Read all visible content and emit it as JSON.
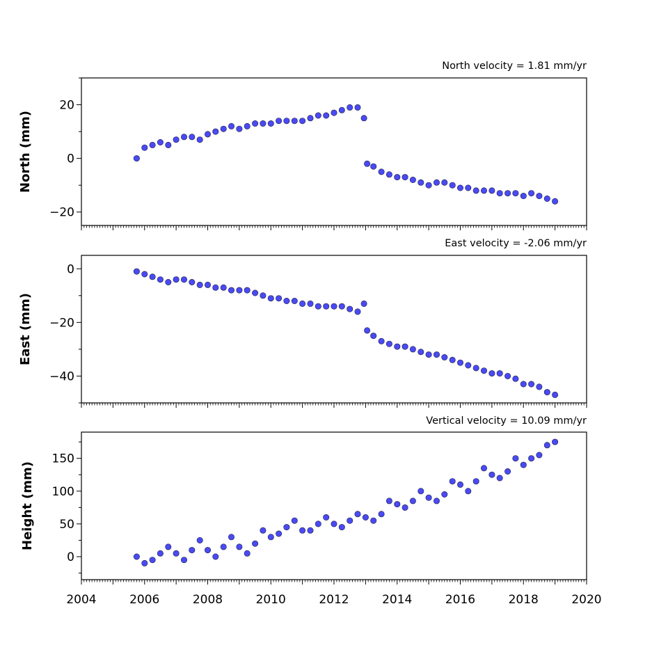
{
  "chart_data": [
    {
      "type": "scatter",
      "title": "North velocity = 1.81 mm/yr",
      "xlabel": "",
      "ylabel": "North (mm)",
      "xlim": [
        2004,
        2020
      ],
      "ylim": [
        -25,
        30
      ],
      "yticks": [
        20,
        0,
        -20
      ],
      "ytick_labels": [
        "20",
        "0",
        "−20"
      ],
      "marker_color": "#4a4af5",
      "series": [
        {
          "values": [
            [
              2005.75,
              0
            ],
            [
              2006.0,
              4
            ],
            [
              2006.25,
              5
            ],
            [
              2006.5,
              6
            ],
            [
              2006.75,
              5
            ],
            [
              2007.0,
              7
            ],
            [
              2007.25,
              8
            ],
            [
              2007.5,
              8
            ],
            [
              2007.75,
              7
            ],
            [
              2008.0,
              9
            ],
            [
              2008.25,
              10
            ],
            [
              2008.5,
              11
            ],
            [
              2008.75,
              12
            ],
            [
              2009.0,
              11
            ],
            [
              2009.25,
              12
            ],
            [
              2009.5,
              13
            ],
            [
              2009.75,
              13
            ],
            [
              2010.0,
              13
            ],
            [
              2010.25,
              14
            ],
            [
              2010.5,
              14
            ],
            [
              2010.75,
              14
            ],
            [
              2011.0,
              14
            ],
            [
              2011.25,
              15
            ],
            [
              2011.5,
              16
            ],
            [
              2011.75,
              16
            ],
            [
              2012.0,
              17
            ],
            [
              2012.25,
              18
            ],
            [
              2012.5,
              19
            ],
            [
              2012.75,
              19
            ],
            [
              2012.95,
              15
            ],
            [
              2013.05,
              -2
            ],
            [
              2013.25,
              -3
            ],
            [
              2013.5,
              -5
            ],
            [
              2013.75,
              -6
            ],
            [
              2014.0,
              -7
            ],
            [
              2014.25,
              -7
            ],
            [
              2014.5,
              -8
            ],
            [
              2014.75,
              -9
            ],
            [
              2015.0,
              -10
            ],
            [
              2015.25,
              -9
            ],
            [
              2015.5,
              -9
            ],
            [
              2015.75,
              -10
            ],
            [
              2016.0,
              -11
            ],
            [
              2016.25,
              -11
            ],
            [
              2016.5,
              -12
            ],
            [
              2016.75,
              -12
            ],
            [
              2017.0,
              -12
            ],
            [
              2017.25,
              -13
            ],
            [
              2017.5,
              -13
            ],
            [
              2017.75,
              -13
            ],
            [
              2018.0,
              -14
            ],
            [
              2018.25,
              -13
            ],
            [
              2018.5,
              -14
            ],
            [
              2018.75,
              -15
            ],
            [
              2019.0,
              -16
            ]
          ]
        }
      ]
    },
    {
      "type": "scatter",
      "title": "East velocity = -2.06 mm/yr",
      "xlabel": "",
      "ylabel": "East (mm)",
      "xlim": [
        2004,
        2020
      ],
      "ylim": [
        -50,
        5
      ],
      "yticks": [
        0,
        -20,
        -40
      ],
      "ytick_labels": [
        "0",
        "−20",
        "−40"
      ],
      "marker_color": "#4a4af5",
      "series": [
        {
          "values": [
            [
              2005.75,
              -1
            ],
            [
              2006.0,
              -2
            ],
            [
              2006.25,
              -3
            ],
            [
              2006.5,
              -4
            ],
            [
              2006.75,
              -5
            ],
            [
              2007.0,
              -4
            ],
            [
              2007.25,
              -4
            ],
            [
              2007.5,
              -5
            ],
            [
              2007.75,
              -6
            ],
            [
              2008.0,
              -6
            ],
            [
              2008.25,
              -7
            ],
            [
              2008.5,
              -7
            ],
            [
              2008.75,
              -8
            ],
            [
              2009.0,
              -8
            ],
            [
              2009.25,
              -8
            ],
            [
              2009.5,
              -9
            ],
            [
              2009.75,
              -10
            ],
            [
              2010.0,
              -11
            ],
            [
              2010.25,
              -11
            ],
            [
              2010.5,
              -12
            ],
            [
              2010.75,
              -12
            ],
            [
              2011.0,
              -13
            ],
            [
              2011.25,
              -13
            ],
            [
              2011.5,
              -14
            ],
            [
              2011.75,
              -14
            ],
            [
              2012.0,
              -14
            ],
            [
              2012.25,
              -14
            ],
            [
              2012.5,
              -15
            ],
            [
              2012.75,
              -16
            ],
            [
              2012.95,
              -13
            ],
            [
              2013.05,
              -23
            ],
            [
              2013.25,
              -25
            ],
            [
              2013.5,
              -27
            ],
            [
              2013.75,
              -28
            ],
            [
              2014.0,
              -29
            ],
            [
              2014.25,
              -29
            ],
            [
              2014.5,
              -30
            ],
            [
              2014.75,
              -31
            ],
            [
              2015.0,
              -32
            ],
            [
              2015.25,
              -32
            ],
            [
              2015.5,
              -33
            ],
            [
              2015.75,
              -34
            ],
            [
              2016.0,
              -35
            ],
            [
              2016.25,
              -36
            ],
            [
              2016.5,
              -37
            ],
            [
              2016.75,
              -38
            ],
            [
              2017.0,
              -39
            ],
            [
              2017.25,
              -39
            ],
            [
              2017.5,
              -40
            ],
            [
              2017.75,
              -41
            ],
            [
              2018.0,
              -43
            ],
            [
              2018.25,
              -43
            ],
            [
              2018.5,
              -44
            ],
            [
              2018.75,
              -46
            ],
            [
              2019.0,
              -47
            ]
          ]
        }
      ]
    },
    {
      "type": "scatter",
      "title": "Vertical velocity = 10.09 mm/yr",
      "xlabel": "",
      "ylabel": "Height (mm)",
      "xlim": [
        2004,
        2020
      ],
      "ylim": [
        -35,
        190
      ],
      "yticks": [
        150,
        100,
        50,
        0
      ],
      "ytick_labels": [
        "150",
        "100",
        "50",
        "0"
      ],
      "xticks": [
        2004,
        2006,
        2008,
        2010,
        2012,
        2014,
        2016,
        2018,
        2020
      ],
      "xtick_labels": [
        "2004",
        "2006",
        "2008",
        "2010",
        "2012",
        "2014",
        "2016",
        "2018",
        "2020"
      ],
      "marker_color": "#4a4af5",
      "series": [
        {
          "values": [
            [
              2005.75,
              0
            ],
            [
              2006.0,
              -10
            ],
            [
              2006.25,
              -5
            ],
            [
              2006.5,
              5
            ],
            [
              2006.75,
              15
            ],
            [
              2007.0,
              5
            ],
            [
              2007.25,
              -5
            ],
            [
              2007.5,
              10
            ],
            [
              2007.75,
              25
            ],
            [
              2008.0,
              10
            ],
            [
              2008.25,
              0
            ],
            [
              2008.5,
              15
            ],
            [
              2008.75,
              30
            ],
            [
              2009.0,
              15
            ],
            [
              2009.25,
              5
            ],
            [
              2009.5,
              20
            ],
            [
              2009.75,
              40
            ],
            [
              2010.0,
              30
            ],
            [
              2010.25,
              35
            ],
            [
              2010.5,
              45
            ],
            [
              2010.75,
              55
            ],
            [
              2011.0,
              40
            ],
            [
              2011.25,
              40
            ],
            [
              2011.5,
              50
            ],
            [
              2011.75,
              60
            ],
            [
              2012.0,
              50
            ],
            [
              2012.25,
              45
            ],
            [
              2012.5,
              55
            ],
            [
              2012.75,
              65
            ],
            [
              2013.0,
              60
            ],
            [
              2013.25,
              55
            ],
            [
              2013.5,
              65
            ],
            [
              2013.75,
              85
            ],
            [
              2014.0,
              80
            ],
            [
              2014.25,
              75
            ],
            [
              2014.5,
              85
            ],
            [
              2014.75,
              100
            ],
            [
              2015.0,
              90
            ],
            [
              2015.25,
              85
            ],
            [
              2015.5,
              95
            ],
            [
              2015.75,
              115
            ],
            [
              2016.0,
              110
            ],
            [
              2016.25,
              100
            ],
            [
              2016.5,
              115
            ],
            [
              2016.75,
              135
            ],
            [
              2017.0,
              125
            ],
            [
              2017.25,
              120
            ],
            [
              2017.5,
              130
            ],
            [
              2017.75,
              150
            ],
            [
              2018.0,
              140
            ],
            [
              2018.25,
              150
            ],
            [
              2018.5,
              155
            ],
            [
              2018.75,
              170
            ],
            [
              2019.0,
              175
            ]
          ]
        }
      ]
    }
  ]
}
